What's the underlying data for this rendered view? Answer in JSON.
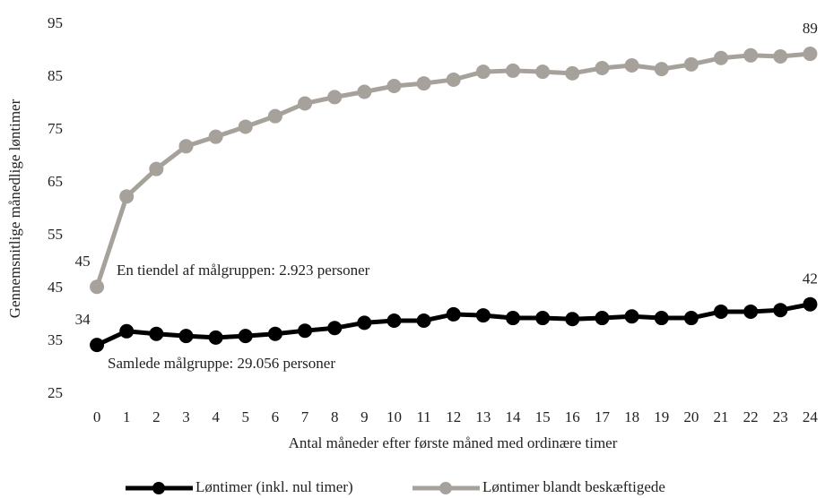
{
  "chart_data": {
    "type": "line",
    "y_label": "Gennemsnitlige månedlige løntimer",
    "x_label": "Antal måneder efter første måned med ordinære timer",
    "categories": [
      "0",
      "1",
      "2",
      "3",
      "4",
      "5",
      "6",
      "7",
      "8",
      "9",
      "10",
      "11",
      "12",
      "13",
      "14",
      "15",
      "16",
      "17",
      "18",
      "19",
      "20",
      "21",
      "22",
      "23",
      "24"
    ],
    "series": [
      {
        "name": "Løntimer (inkl. nul timer)",
        "color": "#000000",
        "values": [
          34.3,
          36.9,
          36.4,
          36.0,
          35.7,
          36.0,
          36.4,
          37.0,
          37.5,
          38.5,
          38.9,
          38.9,
          40.1,
          39.9,
          39.4,
          39.4,
          39.2,
          39.4,
          39.7,
          39.4,
          39.4,
          40.6,
          40.6,
          40.9,
          42.0
        ],
        "value_labels": [
          "34",
          null,
          null,
          null,
          null,
          null,
          null,
          null,
          null,
          null,
          null,
          null,
          null,
          null,
          null,
          null,
          null,
          null,
          null,
          null,
          null,
          null,
          null,
          null,
          "42"
        ]
      },
      {
        "name": "Løntimer blandt beskæftigede",
        "color": "#a6a19b",
        "values": [
          45.3,
          62.4,
          67.6,
          71.9,
          73.7,
          75.6,
          77.6,
          80.0,
          81.2,
          82.2,
          83.3,
          83.8,
          84.5,
          86.0,
          86.2,
          86.0,
          85.7,
          86.7,
          87.2,
          86.5,
          87.4,
          88.6,
          89.1,
          88.9,
          89.4
        ],
        "value_labels": [
          "45",
          null,
          null,
          null,
          null,
          null,
          null,
          null,
          null,
          null,
          null,
          null,
          null,
          null,
          null,
          null,
          null,
          null,
          null,
          null,
          null,
          null,
          null,
          null,
          "89"
        ]
      }
    ],
    "annotations": [
      "En tiendel af målgruppen: 2.923 personer",
      "Samlede målgruppe: 29.056 personer"
    ],
    "ylim": [
      25,
      95
    ],
    "yticks": [
      25,
      35,
      45,
      55,
      65,
      75,
      85,
      95
    ],
    "grid": false
  }
}
